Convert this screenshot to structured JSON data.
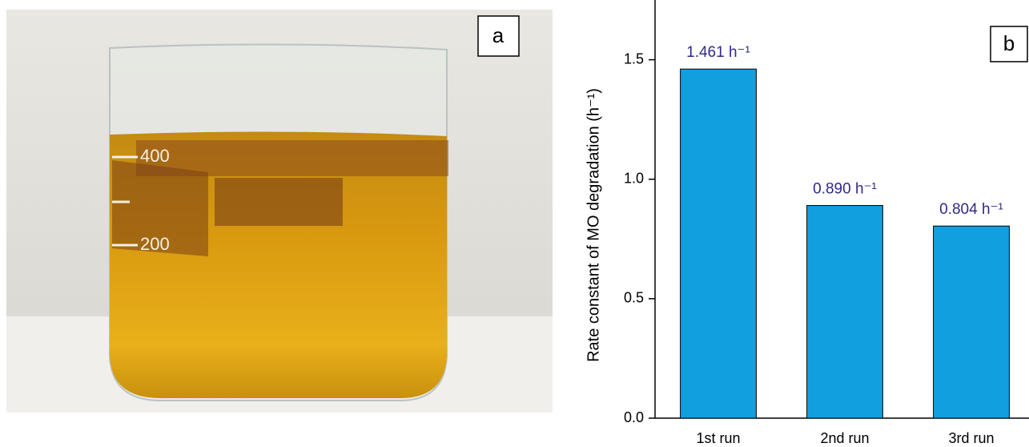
{
  "photo": {
    "panel_label": "a",
    "markings": [
      "400",
      "200"
    ]
  },
  "chart_data": {
    "type": "bar",
    "panel_label": "b",
    "y_label": "Rate constant of MO degradation (h⁻¹)",
    "categories": [
      "1st run",
      "2nd run",
      "3rd run"
    ],
    "values": [
      1.461,
      0.89,
      0.804
    ],
    "value_labels": [
      "1.461 h⁻¹",
      "0.890 h⁻¹",
      "0.804 h⁻¹"
    ],
    "color": "#129fe0",
    "label_color": "#2e2a8a",
    "ylim": [
      0,
      1.75
    ],
    "yticks": [
      {
        "value": 0,
        "label": "0.0"
      },
      0.5,
      {
        "value": 1,
        "label": "1.0"
      },
      1.5
    ]
  }
}
